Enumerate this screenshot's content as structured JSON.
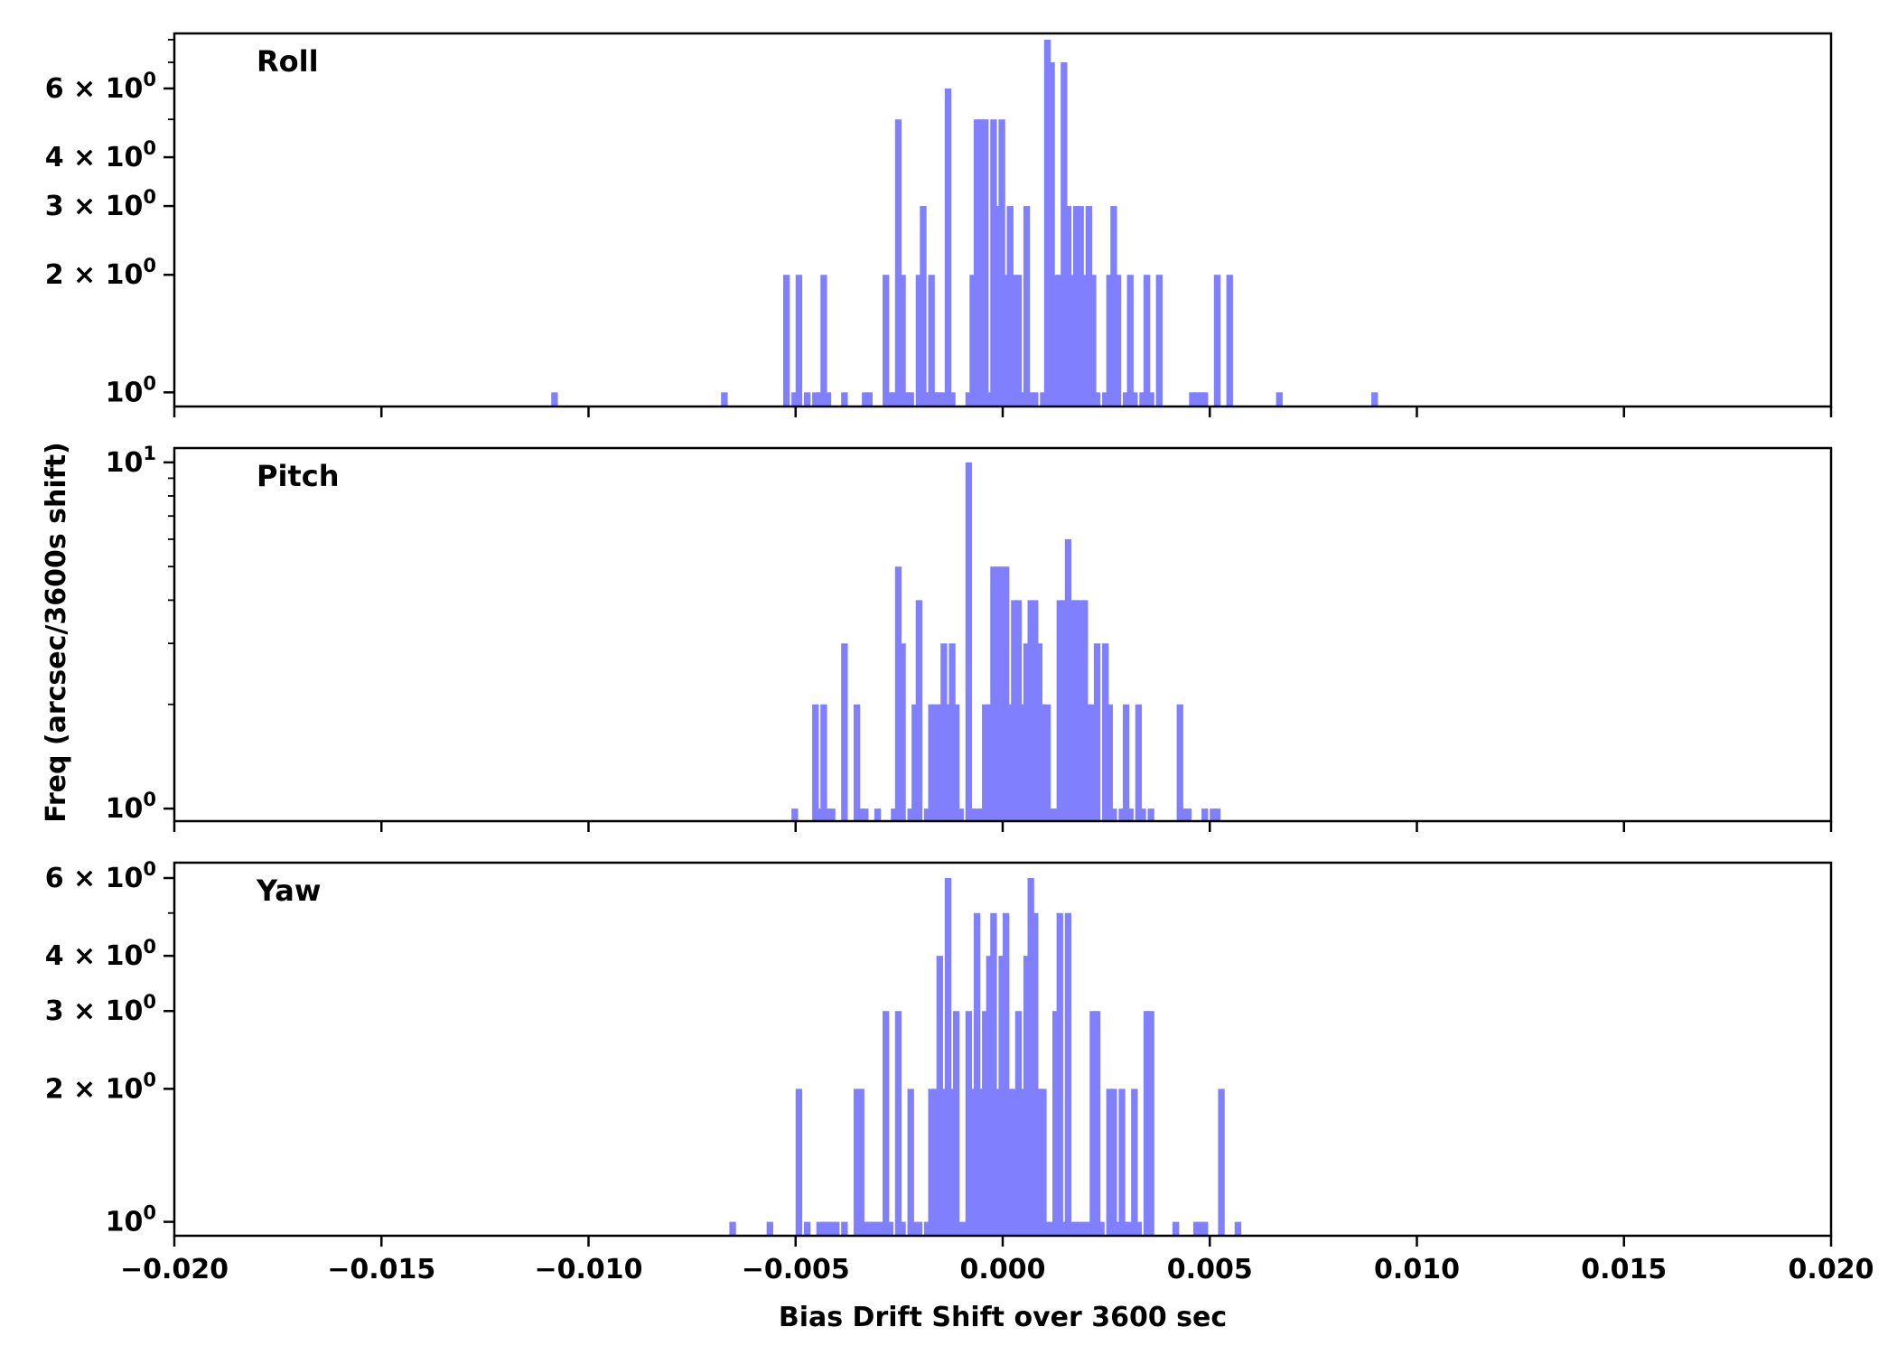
{
  "chart_data": {
    "type": "bar",
    "ylabel": "Freq (arcsec/3600s shift)",
    "xlabel": "Bias Drift Shift over 3600 sec",
    "xlim": [
      -0.02,
      0.02
    ],
    "x_ticks": [
      -0.02,
      -0.015,
      -0.01,
      -0.005,
      0.0,
      0.005,
      0.01,
      0.015,
      0.02
    ],
    "x_tick_labels": [
      "−0.020",
      "−0.015",
      "−0.010",
      "−0.005",
      "0.000",
      "0.005",
      "0.010",
      "0.015",
      "0.020"
    ],
    "bar_color": "#8080ff",
    "bin_width": 0.00016,
    "y_scale": "log",
    "panels": [
      {
        "title": "Roll",
        "ylim": [
          0.92,
          8.3
        ],
        "y_ticks": [
          {
            "value": 1,
            "base": "10",
            "exp": "0"
          },
          {
            "value": 2,
            "base": "2 × 10",
            "exp": "0"
          },
          {
            "value": 3,
            "base": "3 × 10",
            "exp": "0"
          },
          {
            "value": 4,
            "base": "4 × 10",
            "exp": "0"
          },
          {
            "value": 6,
            "base": "6 × 10",
            "exp": "0"
          }
        ],
        "minor_ticks": [
          5,
          7,
          8
        ],
        "bins": [
          [
            -0.0109,
            1
          ],
          [
            -0.0068,
            1
          ],
          [
            -0.0053,
            2
          ],
          [
            -0.0051,
            1
          ],
          [
            -0.005,
            2
          ],
          [
            -0.0048,
            1
          ],
          [
            -0.0046,
            1
          ],
          [
            -0.0045,
            1
          ],
          [
            -0.0044,
            2
          ],
          [
            -0.0043,
            1
          ],
          [
            -0.0039,
            1
          ],
          [
            -0.0034,
            1
          ],
          [
            -0.0033,
            1
          ],
          [
            -0.0029,
            2
          ],
          [
            -0.0028,
            1
          ],
          [
            -0.0027,
            1
          ],
          [
            -0.0026,
            5
          ],
          [
            -0.0025,
            2
          ],
          [
            -0.0024,
            1
          ],
          [
            -0.0023,
            1
          ],
          [
            -0.0021,
            2
          ],
          [
            -0.002,
            3
          ],
          [
            -0.0019,
            1
          ],
          [
            -0.0018,
            2
          ],
          [
            -0.0017,
            1
          ],
          [
            -0.0016,
            1
          ],
          [
            -0.0015,
            1
          ],
          [
            -0.0014,
            6
          ],
          [
            -0.0013,
            1
          ],
          [
            -0.0009,
            1
          ],
          [
            -0.0008,
            2
          ],
          [
            -0.0007,
            5
          ],
          [
            -0.0006,
            5
          ],
          [
            -0.0005,
            5
          ],
          [
            -0.0004,
            1
          ],
          [
            -0.0003,
            5
          ],
          [
            -0.0002,
            3
          ],
          [
            -0.0001,
            5
          ],
          [
            0.0,
            2
          ],
          [
            0.0001,
            3
          ],
          [
            0.0002,
            2
          ],
          [
            0.0003,
            2
          ],
          [
            0.0004,
            1
          ],
          [
            0.0005,
            3
          ],
          [
            0.0006,
            1
          ],
          [
            0.0007,
            1
          ],
          [
            0.0009,
            1
          ],
          [
            0.001,
            8
          ],
          [
            0.0011,
            7
          ],
          [
            0.0012,
            2
          ],
          [
            0.0013,
            2
          ],
          [
            0.0014,
            7
          ],
          [
            0.0015,
            3
          ],
          [
            0.0016,
            2
          ],
          [
            0.0017,
            3
          ],
          [
            0.0018,
            3
          ],
          [
            0.0019,
            2
          ],
          [
            0.002,
            3
          ],
          [
            0.0021,
            2
          ],
          [
            0.0022,
            1
          ],
          [
            0.0024,
            1
          ],
          [
            0.0025,
            2
          ],
          [
            0.0026,
            3
          ],
          [
            0.0027,
            2
          ],
          [
            0.0029,
            1
          ],
          [
            0.003,
            2
          ],
          [
            0.0031,
            1
          ],
          [
            0.0033,
            1
          ],
          [
            0.0034,
            2
          ],
          [
            0.0035,
            1
          ],
          [
            0.0037,
            2
          ],
          [
            0.0045,
            1
          ],
          [
            0.0046,
            1
          ],
          [
            0.0047,
            1
          ],
          [
            0.0048,
            1
          ],
          [
            0.0051,
            2
          ],
          [
            0.0054,
            2
          ],
          [
            0.0066,
            1
          ],
          [
            0.0089,
            1
          ]
        ]
      },
      {
        "title": "Pitch",
        "ylim": [
          0.92,
          11
        ],
        "y_ticks": [
          {
            "value": 1,
            "base": "10",
            "exp": "0"
          },
          {
            "value": 10,
            "base": "10",
            "exp": "1"
          }
        ],
        "minor_ticks": [
          2,
          3,
          4,
          5,
          6,
          7,
          8,
          9
        ],
        "bins": [
          [
            -0.0051,
            1
          ],
          [
            -0.0046,
            2
          ],
          [
            -0.0045,
            1
          ],
          [
            -0.0044,
            2
          ],
          [
            -0.0043,
            1
          ],
          [
            -0.0042,
            1
          ],
          [
            -0.0039,
            3
          ],
          [
            -0.0036,
            2
          ],
          [
            -0.0035,
            1
          ],
          [
            -0.0034,
            1
          ],
          [
            -0.0031,
            1
          ],
          [
            -0.0027,
            1
          ],
          [
            -0.0026,
            5
          ],
          [
            -0.0025,
            3
          ],
          [
            -0.0023,
            1
          ],
          [
            -0.0022,
            2
          ],
          [
            -0.0021,
            4
          ],
          [
            -0.0019,
            1
          ],
          [
            -0.0018,
            2
          ],
          [
            -0.0017,
            2
          ],
          [
            -0.0016,
            2
          ],
          [
            -0.0015,
            3
          ],
          [
            -0.0014,
            2
          ],
          [
            -0.0013,
            3
          ],
          [
            -0.0012,
            2
          ],
          [
            -0.0011,
            1
          ],
          [
            -0.0009,
            10
          ],
          [
            -0.0008,
            1
          ],
          [
            -0.0007,
            1
          ],
          [
            -0.0006,
            1
          ],
          [
            -0.0005,
            2
          ],
          [
            -0.0004,
            2
          ],
          [
            -0.0003,
            5
          ],
          [
            -0.0002,
            5
          ],
          [
            -0.0001,
            5
          ],
          [
            0.0,
            5
          ],
          [
            0.0001,
            2
          ],
          [
            0.0002,
            4
          ],
          [
            0.0003,
            4
          ],
          [
            0.0004,
            2
          ],
          [
            0.0005,
            3
          ],
          [
            0.0006,
            4
          ],
          [
            0.0007,
            4
          ],
          [
            0.0008,
            3
          ],
          [
            0.0009,
            2
          ],
          [
            0.001,
            2
          ],
          [
            0.0011,
            1
          ],
          [
            0.0012,
            1
          ],
          [
            0.0013,
            4
          ],
          [
            0.0014,
            4
          ],
          [
            0.0015,
            6
          ],
          [
            0.0016,
            4
          ],
          [
            0.0017,
            4
          ],
          [
            0.0018,
            4
          ],
          [
            0.0019,
            4
          ],
          [
            0.002,
            2
          ],
          [
            0.0021,
            2
          ],
          [
            0.0022,
            3
          ],
          [
            0.0024,
            3
          ],
          [
            0.0025,
            2
          ],
          [
            0.0026,
            1
          ],
          [
            0.0028,
            1
          ],
          [
            0.0029,
            2
          ],
          [
            0.003,
            1
          ],
          [
            0.0032,
            2
          ],
          [
            0.0033,
            1
          ],
          [
            0.0035,
            1
          ],
          [
            0.0042,
            2
          ],
          [
            0.0043,
            1
          ],
          [
            0.0044,
            1
          ],
          [
            0.0048,
            1
          ],
          [
            0.005,
            1
          ],
          [
            0.0051,
            1
          ]
        ]
      },
      {
        "title": "Yaw",
        "ylim": [
          0.93,
          6.5
        ],
        "y_ticks": [
          {
            "value": 1,
            "base": "10",
            "exp": "0"
          },
          {
            "value": 2,
            "base": "2 × 10",
            "exp": "0"
          },
          {
            "value": 3,
            "base": "3 × 10",
            "exp": "0"
          },
          {
            "value": 4,
            "base": "4 × 10",
            "exp": "0"
          },
          {
            "value": 6,
            "base": "6 × 10",
            "exp": "0"
          }
        ],
        "minor_ticks": [
          5
        ],
        "bins": [
          [
            -0.0066,
            1
          ],
          [
            -0.0057,
            1
          ],
          [
            -0.005,
            2
          ],
          [
            -0.0048,
            1
          ],
          [
            -0.0045,
            1
          ],
          [
            -0.0044,
            1
          ],
          [
            -0.0043,
            1
          ],
          [
            -0.0042,
            1
          ],
          [
            -0.0041,
            1
          ],
          [
            -0.0039,
            1
          ],
          [
            -0.0036,
            2
          ],
          [
            -0.0035,
            2
          ],
          [
            -0.0034,
            1
          ],
          [
            -0.0033,
            1
          ],
          [
            -0.0032,
            1
          ],
          [
            -0.0031,
            1
          ],
          [
            -0.003,
            1
          ],
          [
            -0.0029,
            3
          ],
          [
            -0.0028,
            1
          ],
          [
            -0.0026,
            3
          ],
          [
            -0.0025,
            1
          ],
          [
            -0.0023,
            2
          ],
          [
            -0.0022,
            1
          ],
          [
            -0.0021,
            1
          ],
          [
            -0.0019,
            1
          ],
          [
            -0.0018,
            2
          ],
          [
            -0.0017,
            2
          ],
          [
            -0.0016,
            4
          ],
          [
            -0.0015,
            2
          ],
          [
            -0.0014,
            6
          ],
          [
            -0.0013,
            2
          ],
          [
            -0.0012,
            3
          ],
          [
            -0.0011,
            1
          ],
          [
            -0.001,
            1
          ],
          [
            -0.0009,
            3
          ],
          [
            -0.0008,
            2
          ],
          [
            -0.0007,
            5
          ],
          [
            -0.0006,
            2
          ],
          [
            -0.0005,
            3
          ],
          [
            -0.0004,
            4
          ],
          [
            -0.0003,
            5
          ],
          [
            -0.0002,
            2
          ],
          [
            -0.0001,
            4
          ],
          [
            0.0,
            5
          ],
          [
            0.0001,
            2
          ],
          [
            0.0002,
            2
          ],
          [
            0.0003,
            3
          ],
          [
            0.0004,
            2
          ],
          [
            0.0005,
            4
          ],
          [
            0.0006,
            6
          ],
          [
            0.0007,
            5
          ],
          [
            0.0008,
            2
          ],
          [
            0.0009,
            2
          ],
          [
            0.001,
            1
          ],
          [
            0.0011,
            1
          ],
          [
            0.0012,
            3
          ],
          [
            0.0013,
            5
          ],
          [
            0.0014,
            1
          ],
          [
            0.0015,
            5
          ],
          [
            0.0016,
            1
          ],
          [
            0.0017,
            1
          ],
          [
            0.0018,
            1
          ],
          [
            0.0019,
            1
          ],
          [
            0.002,
            1
          ],
          [
            0.0021,
            3
          ],
          [
            0.0022,
            3
          ],
          [
            0.0023,
            1
          ],
          [
            0.0025,
            2
          ],
          [
            0.0026,
            2
          ],
          [
            0.0027,
            1
          ],
          [
            0.0028,
            2
          ],
          [
            0.0029,
            1
          ],
          [
            0.003,
            1
          ],
          [
            0.0031,
            2
          ],
          [
            0.0032,
            1
          ],
          [
            0.0034,
            3
          ],
          [
            0.0035,
            3
          ],
          [
            0.0041,
            1
          ],
          [
            0.0046,
            1
          ],
          [
            0.0047,
            1
          ],
          [
            0.0048,
            1
          ],
          [
            0.0052,
            2
          ],
          [
            0.0056,
            1
          ]
        ]
      }
    ]
  }
}
